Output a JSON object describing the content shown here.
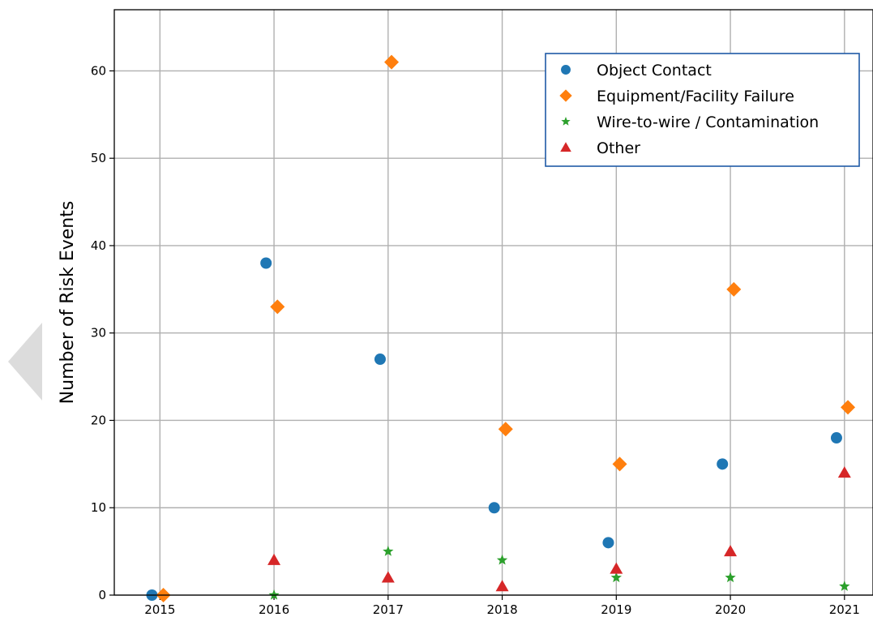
{
  "chart_data": {
    "type": "scatter",
    "title": "",
    "xlabel": "",
    "ylabel": "Number of Risk Events",
    "x_ticks": [
      "2015",
      "2016",
      "2017",
      "2018",
      "2019",
      "2020",
      "2021"
    ],
    "y_ticks": [
      "0",
      "10",
      "20",
      "30",
      "40",
      "50",
      "60"
    ],
    "xlim": [
      2014.6,
      2021.25
    ],
    "ylim": [
      0,
      67
    ],
    "grid": true,
    "legend_position": "top-right",
    "series": [
      {
        "name": "Object Contact",
        "marker": "circle",
        "color": "#1f77b4",
        "points": [
          [
            2014.93,
            0
          ],
          [
            2015.93,
            38
          ],
          [
            2016.93,
            27
          ],
          [
            2017.93,
            10
          ],
          [
            2018.93,
            6
          ],
          [
            2019.93,
            15
          ],
          [
            2020.93,
            18
          ]
        ]
      },
      {
        "name": "Equipment/Facility Failure",
        "marker": "diamond",
        "color": "#ff7f0e",
        "points": [
          [
            2015.03,
            0
          ],
          [
            2016.03,
            33
          ],
          [
            2017.03,
            61
          ],
          [
            2018.03,
            19
          ],
          [
            2019.03,
            15
          ],
          [
            2020.03,
            35
          ],
          [
            2021.03,
            21.5
          ]
        ]
      },
      {
        "name": "Wire-to-wire / Contamination",
        "marker": "star",
        "color": "#2ca02c",
        "points": [
          [
            2016.0,
            0
          ],
          [
            2017.0,
            5
          ],
          [
            2018.0,
            4
          ],
          [
            2019.0,
            2
          ],
          [
            2020.0,
            2
          ],
          [
            2021.0,
            1
          ]
        ]
      },
      {
        "name": "Other",
        "marker": "triangle",
        "color": "#d62728",
        "points": [
          [
            2016.0,
            4
          ],
          [
            2017.0,
            2
          ],
          [
            2018.0,
            1
          ],
          [
            2019.0,
            3
          ],
          [
            2020.0,
            5
          ],
          [
            2021.0,
            14
          ]
        ]
      }
    ]
  }
}
